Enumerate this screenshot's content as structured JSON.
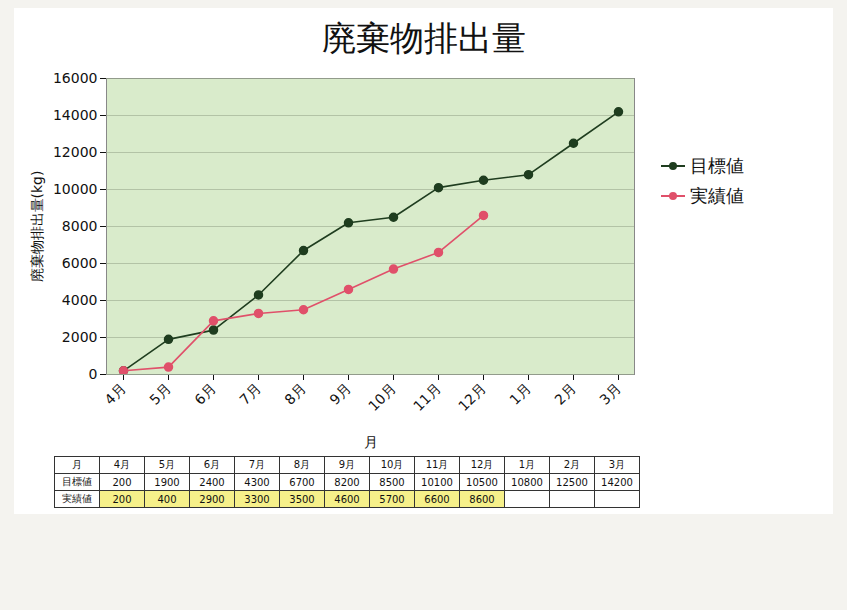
{
  "chart_data": {
    "type": "line",
    "title": "廃棄物排出量",
    "x_label": "月",
    "y_label": "廃棄物排出量(kg)",
    "categories": [
      "4月",
      "5月",
      "6月",
      "7月",
      "8月",
      "9月",
      "10月",
      "11月",
      "12月",
      "1月",
      "2月",
      "3月"
    ],
    "series": [
      {
        "name": "目標値",
        "color": "#1f3d1f",
        "marker": "circle",
        "values": [
          200,
          1900,
          2400,
          4300,
          6700,
          8200,
          8500,
          10100,
          10500,
          10800,
          12500,
          14200
        ]
      },
      {
        "name": "実績値",
        "color": "#e0506a",
        "marker": "circle",
        "values": [
          200,
          400,
          2900,
          3300,
          3500,
          4600,
          5700,
          6600,
          8600,
          null,
          null,
          null
        ]
      }
    ],
    "ylim": [
      0,
      16000
    ],
    "yticks": [
      0,
      2000,
      4000,
      6000,
      8000,
      10000,
      12000,
      14000,
      16000
    ],
    "grid": true,
    "legend": "right"
  }
}
